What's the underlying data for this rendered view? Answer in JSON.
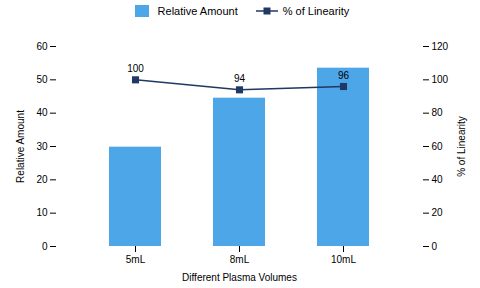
{
  "chart_data": {
    "type": "bar",
    "categories": [
      "5mL",
      "8mL",
      "10mL"
    ],
    "xlabel": "Different Plasma Volumes",
    "ylabel": "Relative Amount",
    "y2label": "% of Linearity",
    "series": [
      {
        "name": "Relative Amount",
        "type": "bar",
        "color": "#4da6e8",
        "values": [
          29.8,
          44.5,
          53.5
        ]
      },
      {
        "name": "% of Linearity",
        "type": "line",
        "color": "#1f3864",
        "marker": "square",
        "axis": "y2",
        "data_labels": true,
        "values": [
          100,
          94,
          96
        ]
      }
    ],
    "ylim": [
      0,
      60
    ],
    "yticks": [
      0,
      10,
      20,
      30,
      40,
      50,
      60
    ],
    "y2lim": [
      0,
      120
    ],
    "y2ticks": [
      0,
      20,
      40,
      60,
      80,
      100,
      120
    ],
    "legend": "top"
  }
}
